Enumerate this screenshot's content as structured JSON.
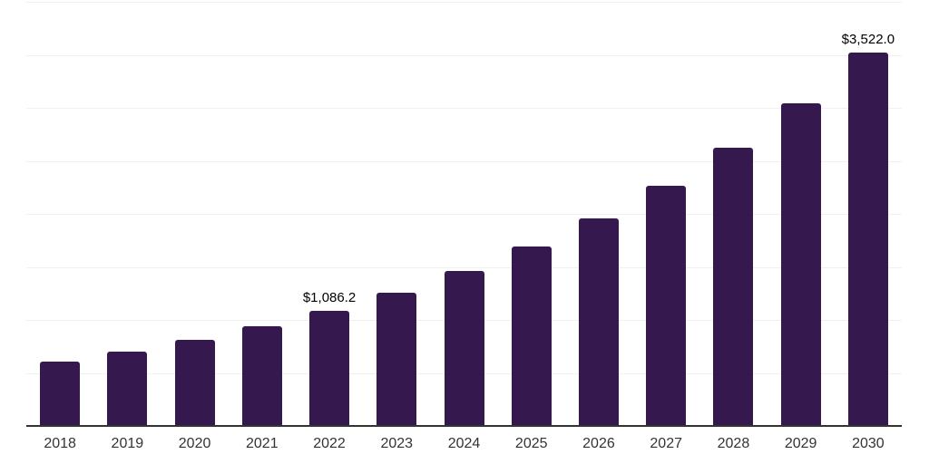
{
  "chart_data": {
    "type": "bar",
    "title": "",
    "xlabel": "",
    "ylabel": "",
    "categories": [
      "2018",
      "2019",
      "2020",
      "2021",
      "2022",
      "2023",
      "2024",
      "2025",
      "2026",
      "2027",
      "2028",
      "2029",
      "2030"
    ],
    "values": [
      603,
      699,
      809,
      938,
      1086.2,
      1258,
      1458,
      1689,
      1957,
      2267,
      2626,
      3042,
      3522
    ],
    "data_labels": [
      "",
      "",
      "",
      "",
      "$1,086.2",
      "",
      "",
      "",
      "",
      "",
      "",
      "",
      "$3,522.0"
    ],
    "ylim": [
      0,
      4000
    ],
    "grid_step": 500,
    "grid": true,
    "legend": false,
    "colors": {
      "bar": "#35184E",
      "gridline": "#f0f0f0",
      "axis_line": "#333333",
      "tick_label": "#333333",
      "data_label": "#000000",
      "background": "#ffffff"
    }
  }
}
